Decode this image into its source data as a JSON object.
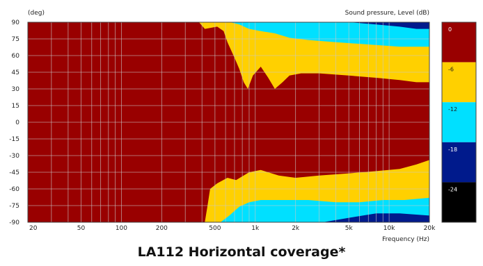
{
  "caption": "LA112 Horizontal coverage*",
  "chart_data": {
    "type": "heatmap",
    "title": "LA112 Horizontal coverage*",
    "y_unit_label": "(deg)",
    "legend_title": "Sound pressure, Level  (dB)",
    "xlabel": "Frequency  (Hz)",
    "x_scale": "log",
    "xlim": [
      20,
      20000
    ],
    "ylim": [
      -90,
      90
    ],
    "x_ticks": [
      {
        "value": 20,
        "label": "20"
      },
      {
        "value": 50,
        "label": "50"
      },
      {
        "value": 100,
        "label": "100"
      },
      {
        "value": 200,
        "label": "200"
      },
      {
        "value": 500,
        "label": "500"
      },
      {
        "value": 1000,
        "label": "1k"
      },
      {
        "value": 2000,
        "label": "2k"
      },
      {
        "value": 5000,
        "label": "5k"
      },
      {
        "value": 10000,
        "label": "10k"
      },
      {
        "value": 20000,
        "label": "20k"
      }
    ],
    "y_ticks": [
      90,
      75,
      60,
      45,
      30,
      15,
      0,
      -15,
      -30,
      -45,
      -60,
      -75,
      -90
    ],
    "levels": [
      {
        "label": "0",
        "from_db": 0,
        "to_db": -6,
        "color": "#990000"
      },
      {
        "label": "-6",
        "from_db": -6,
        "to_db": -12,
        "color": "#ffd000"
      },
      {
        "label": "-12",
        "from_db": -12,
        "to_db": -18,
        "color": "#00e0ff"
      },
      {
        "label": "-18",
        "from_db": -18,
        "to_db": -24,
        "color": "#001a8c"
      },
      {
        "label": "-24",
        "from_db": -24,
        "to_db": -30,
        "color": "#000000"
      }
    ],
    "contours_upper": [
      {
        "level": "-6",
        "boundary": [
          [
            380,
            90
          ],
          [
            420,
            84
          ],
          [
            520,
            86
          ],
          [
            580,
            82
          ],
          [
            620,
            72
          ],
          [
            700,
            58
          ],
          [
            760,
            48
          ],
          [
            820,
            36
          ],
          [
            880,
            30
          ],
          [
            960,
            42
          ],
          [
            1100,
            50
          ],
          [
            1250,
            40
          ],
          [
            1400,
            30
          ],
          [
            1600,
            36
          ],
          [
            1800,
            42
          ],
          [
            2200,
            44
          ],
          [
            3000,
            44
          ],
          [
            5000,
            42
          ],
          [
            8000,
            40
          ],
          [
            12000,
            38
          ],
          [
            16000,
            36
          ],
          [
            20000,
            36
          ]
        ]
      },
      {
        "level": "-12",
        "boundary": [
          [
            650,
            90
          ],
          [
            760,
            88
          ],
          [
            900,
            84
          ],
          [
            1100,
            82
          ],
          [
            1400,
            80
          ],
          [
            1800,
            76
          ],
          [
            2500,
            74
          ],
          [
            4000,
            72
          ],
          [
            7000,
            70
          ],
          [
            12000,
            68
          ],
          [
            20000,
            68
          ]
        ]
      },
      {
        "level": "-18",
        "boundary": [
          [
            5000,
            90
          ],
          [
            8000,
            88
          ],
          [
            12000,
            86
          ],
          [
            16000,
            84
          ],
          [
            20000,
            84
          ]
        ]
      }
    ],
    "contours_lower": [
      {
        "level": "-6",
        "boundary": [
          [
            420,
            -90
          ],
          [
            440,
            -75
          ],
          [
            460,
            -60
          ],
          [
            520,
            -55
          ],
          [
            620,
            -50
          ],
          [
            720,
            -52
          ],
          [
            900,
            -45
          ],
          [
            1100,
            -43
          ],
          [
            1500,
            -48
          ],
          [
            2000,
            -50
          ],
          [
            3000,
            -48
          ],
          [
            5000,
            -46
          ],
          [
            8000,
            -44
          ],
          [
            12000,
            -42
          ],
          [
            16000,
            -38
          ],
          [
            20000,
            -34
          ]
        ]
      },
      {
        "level": "-12",
        "boundary": [
          [
            550,
            -90
          ],
          [
            640,
            -84
          ],
          [
            760,
            -76
          ],
          [
            900,
            -72
          ],
          [
            1100,
            -70
          ],
          [
            1600,
            -70
          ],
          [
            2500,
            -70
          ],
          [
            4000,
            -72
          ],
          [
            6000,
            -72
          ],
          [
            9000,
            -70
          ],
          [
            13000,
            -70
          ],
          [
            20000,
            -68
          ]
        ]
      },
      {
        "level": "-18",
        "boundary": [
          [
            3200,
            -90
          ],
          [
            5000,
            -86
          ],
          [
            8000,
            -82
          ],
          [
            12000,
            -82
          ],
          [
            20000,
            -84
          ]
        ]
      }
    ]
  }
}
